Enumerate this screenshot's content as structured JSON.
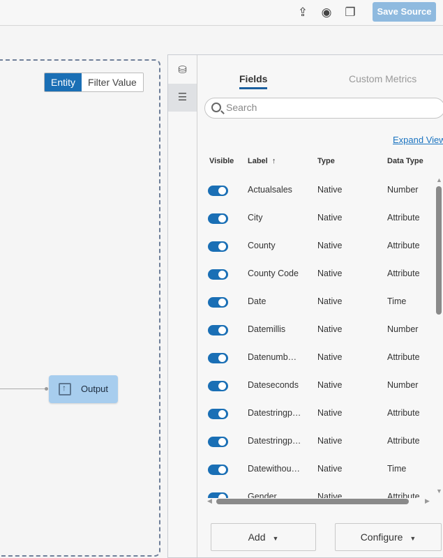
{
  "toolbar": {
    "save_label": "Save Source",
    "icons": [
      "upload-icon",
      "eye-icon",
      "copy-icon"
    ]
  },
  "canvas": {
    "segment": {
      "options": [
        "Entity",
        "Filter Value"
      ],
      "selected": "Entity"
    },
    "node": {
      "label": "Output",
      "icon": "output-icon"
    }
  },
  "panel": {
    "side_icons": [
      "database-icon",
      "field-settings-icon"
    ],
    "tabs": [
      {
        "label": "Fields",
        "selected": true
      },
      {
        "label": "Custom Metrics",
        "selected": false
      }
    ],
    "search_placeholder": "Search",
    "expand_view": "Expand View",
    "columns": {
      "visible": "Visible",
      "label": "Label",
      "sort": "↑",
      "type": "Type",
      "data_type": "Data Type"
    },
    "rows": [
      {
        "visible": true,
        "label": "Actualsales",
        "type": "Native",
        "data_type": "Number"
      },
      {
        "visible": true,
        "label": "City",
        "type": "Native",
        "data_type": "Attribute"
      },
      {
        "visible": true,
        "label": "County",
        "type": "Native",
        "data_type": "Attribute"
      },
      {
        "visible": true,
        "label": "County Code",
        "type": "Native",
        "data_type": "Attribute"
      },
      {
        "visible": true,
        "label": "Date",
        "type": "Native",
        "data_type": "Time"
      },
      {
        "visible": true,
        "label": "Datemillis",
        "type": "Native",
        "data_type": "Number"
      },
      {
        "visible": true,
        "label": "Datenumb…",
        "type": "Native",
        "data_type": "Attribute"
      },
      {
        "visible": true,
        "label": "Dateseconds",
        "type": "Native",
        "data_type": "Number"
      },
      {
        "visible": true,
        "label": "Datestringp…",
        "type": "Native",
        "data_type": "Attribute"
      },
      {
        "visible": true,
        "label": "Datestringp…",
        "type": "Native",
        "data_type": "Attribute"
      },
      {
        "visible": true,
        "label": "Datewithou…",
        "type": "Native",
        "data_type": "Time"
      },
      {
        "visible": true,
        "label": "Gender",
        "type": "Native",
        "data_type": "Attribute"
      }
    ],
    "add_label": "Add",
    "configure_label": "Configure"
  }
}
